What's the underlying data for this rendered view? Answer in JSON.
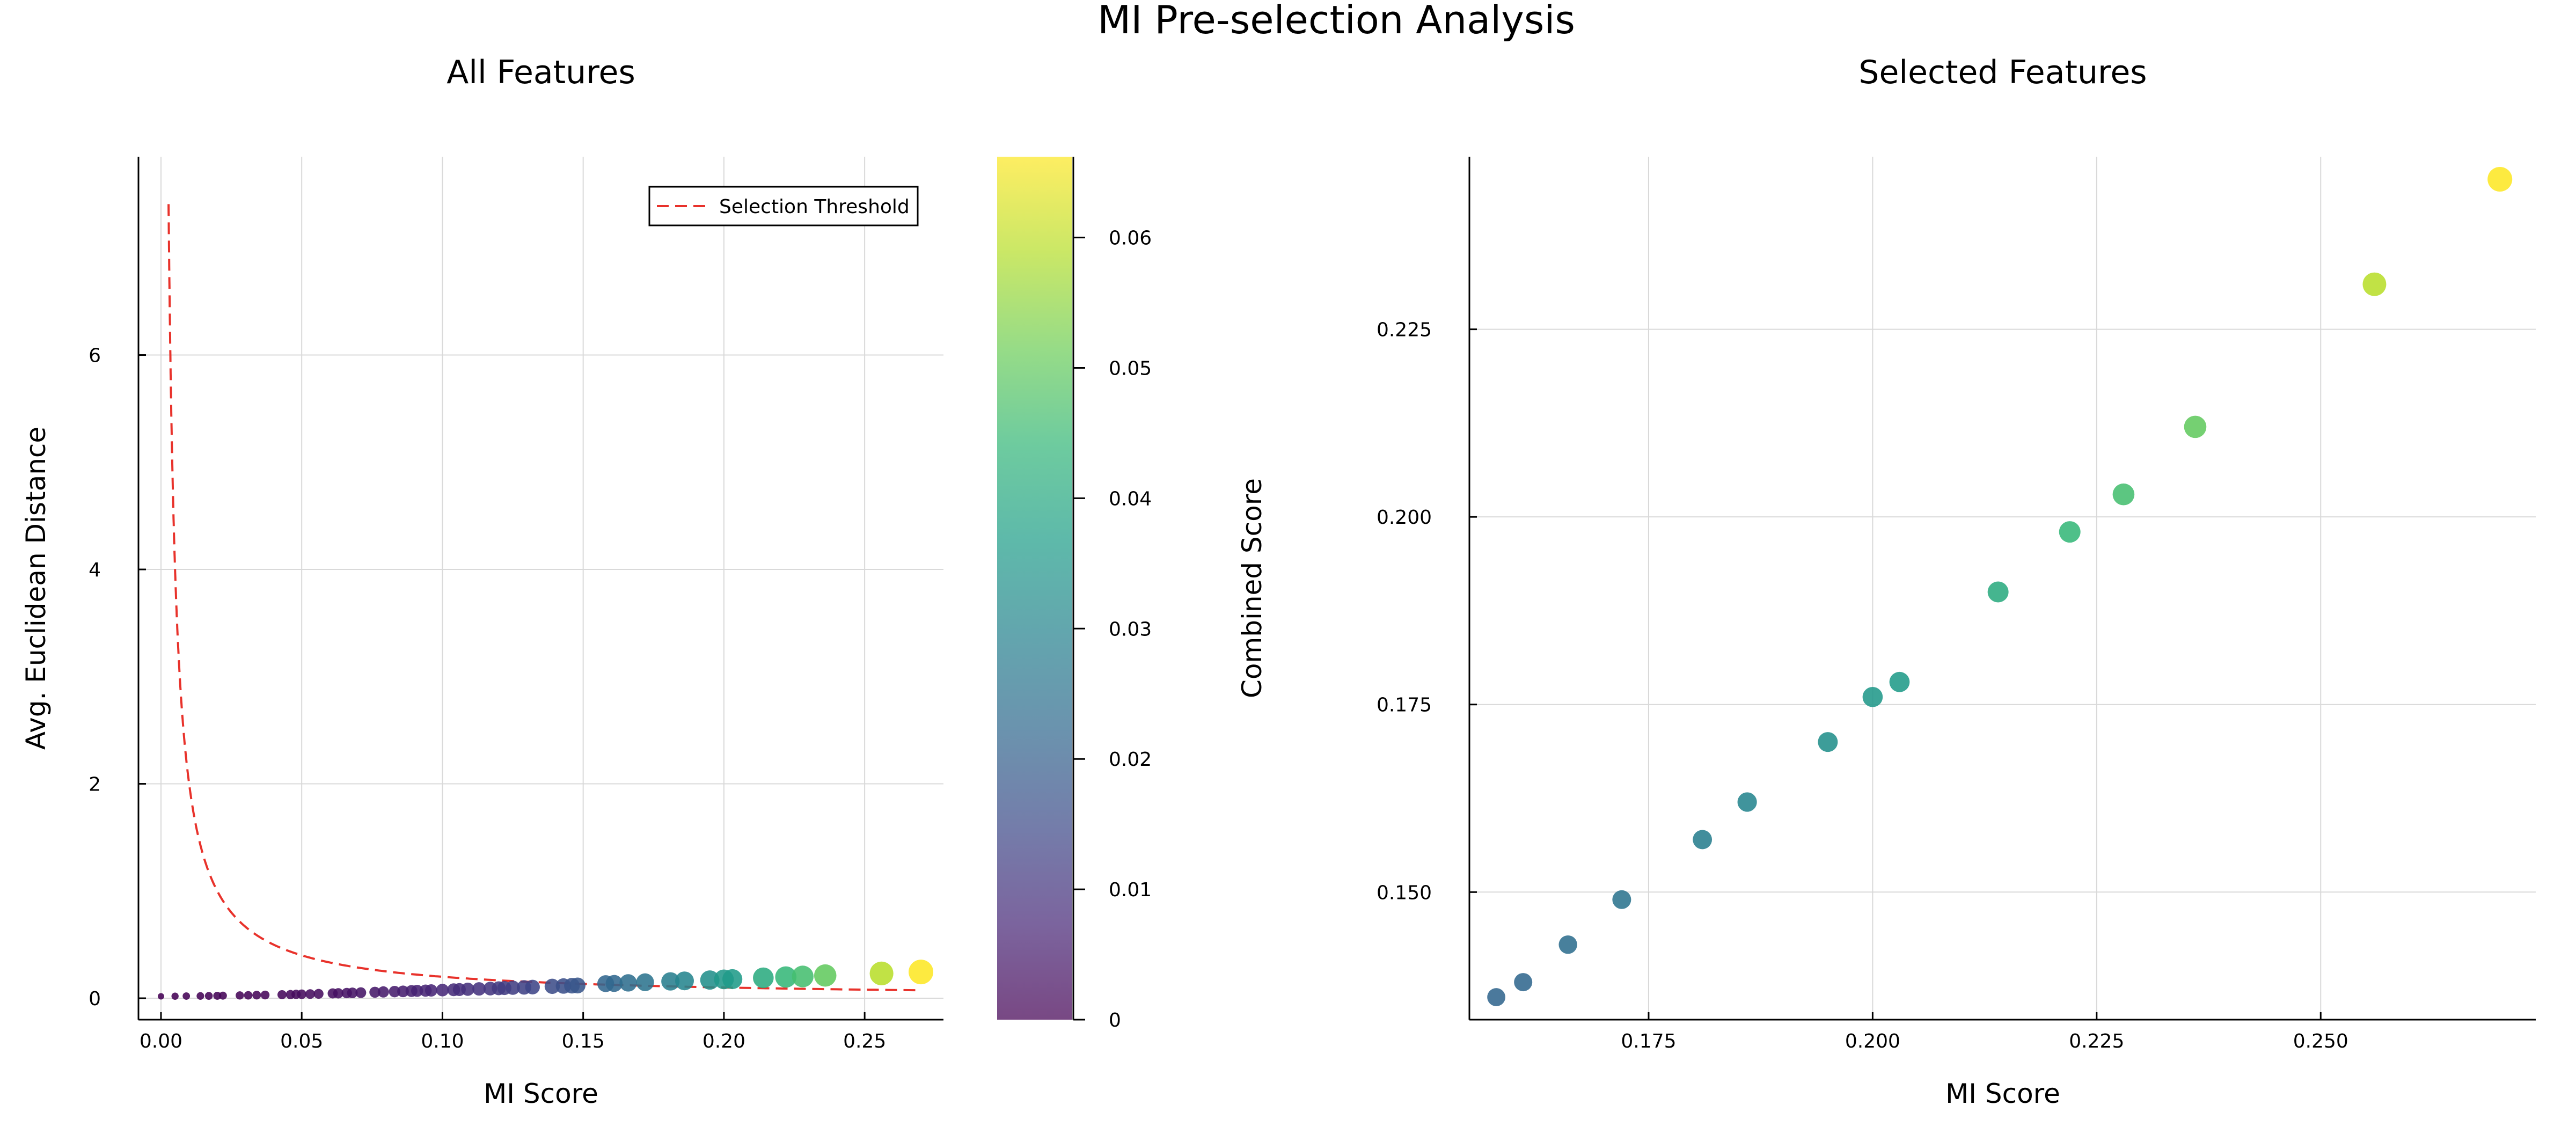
{
  "figure": {
    "suptitle": "MI Pre-selection Analysis",
    "left_title": "All Features",
    "right_title": "Selected Features",
    "left_xlabel": "MI Score",
    "left_ylabel": "Avg. Euclidean Distance",
    "right_xlabel": "MI Score",
    "colorbar_label": "Combined Score",
    "legend_label": "Selection Threshold",
    "threshold_color": "#e8322b",
    "colormap": "viridis"
  },
  "chart_data": [
    {
      "type": "scatter",
      "title": "All Features",
      "xlabel": "MI Score",
      "ylabel": "Avg. Euclidean Distance",
      "xlim": [
        -0.008,
        0.278
      ],
      "ylim": [
        -0.2,
        7.85
      ],
      "xticks": [
        "0.00",
        "0.05",
        "0.10",
        "0.15",
        "0.20",
        "0.25"
      ],
      "xtick_values": [
        0,
        0.05,
        0.1,
        0.15,
        0.2,
        0.25
      ],
      "yticks": [
        "0",
        "2",
        "4",
        "6"
      ],
      "ytick_values": [
        0,
        2,
        4,
        6
      ],
      "grid": true,
      "legend_position": "top-right",
      "threshold_curve": {
        "name": "Selection Threshold",
        "style": "dashed",
        "constant": 0.02,
        "formula": "y = 0.02 / x",
        "x_from": 0.0027,
        "x_to": 0.268
      },
      "x": [
        0.0,
        0.005,
        0.009,
        0.014,
        0.017,
        0.02,
        0.022,
        0.028,
        0.031,
        0.034,
        0.037,
        0.043,
        0.046,
        0.048,
        0.05,
        0.053,
        0.056,
        0.061,
        0.063,
        0.066,
        0.068,
        0.071,
        0.076,
        0.079,
        0.083,
        0.086,
        0.089,
        0.091,
        0.094,
        0.096,
        0.1,
        0.104,
        0.106,
        0.109,
        0.113,
        0.117,
        0.12,
        0.122,
        0.125,
        0.129,
        0.132,
        0.139,
        0.143,
        0.146,
        0.148,
        0.158,
        0.161,
        0.166,
        0.172,
        0.181,
        0.186,
        0.195,
        0.2,
        0.203,
        0.214,
        0.222,
        0.228,
        0.236,
        0.256,
        0.27
      ],
      "y": [
        0.018,
        0.019,
        0.02,
        0.021,
        0.022,
        0.023,
        0.024,
        0.026,
        0.027,
        0.029,
        0.03,
        0.033,
        0.034,
        0.036,
        0.037,
        0.039,
        0.041,
        0.045,
        0.046,
        0.048,
        0.05,
        0.052,
        0.056,
        0.059,
        0.062,
        0.064,
        0.067,
        0.069,
        0.071,
        0.073,
        0.076,
        0.079,
        0.081,
        0.084,
        0.087,
        0.09,
        0.093,
        0.095,
        0.098,
        0.101,
        0.104,
        0.111,
        0.114,
        0.117,
        0.119,
        0.136,
        0.138,
        0.143,
        0.149,
        0.157,
        0.162,
        0.17,
        0.176,
        0.178,
        0.19,
        0.198,
        0.203,
        0.212,
        0.231,
        0.245
      ],
      "combined_score": [
        0.0,
        0.0001,
        0.0002,
        0.0003,
        0.0004,
        0.0005,
        0.0005,
        0.0007,
        0.0008,
        0.001,
        0.0011,
        0.0014,
        0.0016,
        0.0017,
        0.0019,
        0.0021,
        0.0023,
        0.0027,
        0.0029,
        0.0032,
        0.0034,
        0.0037,
        0.0043,
        0.0047,
        0.0051,
        0.0055,
        0.006,
        0.0063,
        0.0067,
        0.007,
        0.0076,
        0.0082,
        0.0086,
        0.0092,
        0.0098,
        0.0105,
        0.0112,
        0.0116,
        0.0123,
        0.013,
        0.0137,
        0.0154,
        0.0163,
        0.0171,
        0.0176,
        0.0215,
        0.0222,
        0.0237,
        0.0256,
        0.0284,
        0.0301,
        0.0332,
        0.0352,
        0.0361,
        0.0407,
        0.044,
        0.0463,
        0.05,
        0.0591,
        0.0662
      ],
      "colorbar": {
        "label": "Combined Score",
        "ticks": [
          "0",
          "0.01",
          "0.02",
          "0.03",
          "0.04",
          "0.05",
          "0.06"
        ],
        "tick_values": [
          0,
          0.01,
          0.02,
          0.03,
          0.04,
          0.05,
          0.06
        ],
        "range": [
          0,
          0.0662
        ]
      }
    },
    {
      "type": "scatter",
      "title": "Selected Features",
      "xlabel": "MI Score",
      "ylabel": "",
      "xlim": [
        0.155,
        0.274
      ],
      "ylim": [
        0.133,
        0.248
      ],
      "xticks": [
        "0.175",
        "0.200",
        "0.225",
        "0.250"
      ],
      "xtick_values": [
        0.175,
        0.2,
        0.225,
        0.25
      ],
      "yticks": [
        "0.150",
        "0.175",
        "0.200",
        "0.225"
      ],
      "ytick_values": [
        0.15,
        0.175,
        0.2,
        0.225
      ],
      "grid": true,
      "x": [
        0.158,
        0.161,
        0.166,
        0.172,
        0.181,
        0.186,
        0.195,
        0.2,
        0.203,
        0.214,
        0.222,
        0.228,
        0.236,
        0.256,
        0.27
      ],
      "y": [
        0.136,
        0.138,
        0.143,
        0.149,
        0.157,
        0.162,
        0.17,
        0.176,
        0.178,
        0.19,
        0.198,
        0.203,
        0.212,
        0.231,
        0.245
      ],
      "combined_score": [
        0.0215,
        0.0222,
        0.0237,
        0.0256,
        0.0284,
        0.0301,
        0.0332,
        0.0352,
        0.0361,
        0.0407,
        0.044,
        0.0463,
        0.05,
        0.0591,
        0.0662
      ]
    }
  ]
}
